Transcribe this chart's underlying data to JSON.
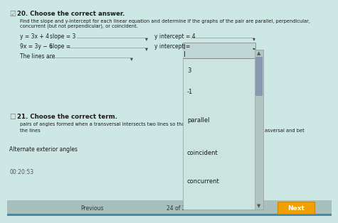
{
  "bg_color": "#cde8e4",
  "title_q20": "20. Choose the correct answer.",
  "desc_line1": "Find the slope and y-intercept for each linear equation and determine if the graphs of the pair are parallel, perpendicular,",
  "desc_line2": "concurrent (but not perpendicular), or coincident.",
  "eq1_label": "y = 3x + 4",
  "eq1_slope_label": "slope = 3",
  "eq1_yint_label": "y intercept = 4",
  "eq2_label": "9x = 3y − 6",
  "eq2_slope_label": "slope =",
  "eq2_yint_label": "y intercept =",
  "lines_label": "The lines are",
  "dropdown_items": [
    "3",
    "-1",
    "parallel",
    "coincident",
    "concurrent"
  ],
  "title_q21": "21. Choose the correct term.",
  "desc_q21a": "pairs of angles formed when a transversal intersects two lines so that they",
  "desc_q21b": "the lines",
  "alt_ext_label": "Alternate exterior angles",
  "timer_label": "00:20:53",
  "nav_text": "asversal and bet",
  "next_btn": "Next",
  "prev_label": "Previous",
  "page_label": "24 of 24",
  "text_color": "#1a1a1a",
  "light_text": "#555555",
  "dropdown_border": "#999999",
  "input_bg": "#d8eae8",
  "input_active_bg": "#c0d8d5",
  "menu_bg": "#d4e8e4",
  "scrollbar_track": "#b8ccc8",
  "scrollbar_thumb": "#8898b0",
  "checkbox_color": "#777777",
  "next_btn_color": "#f0a000",
  "nav_bar_color": "#b8cece",
  "line_color": "#aaaaaa",
  "cursor_text": "✔",
  "icon_check": "□"
}
